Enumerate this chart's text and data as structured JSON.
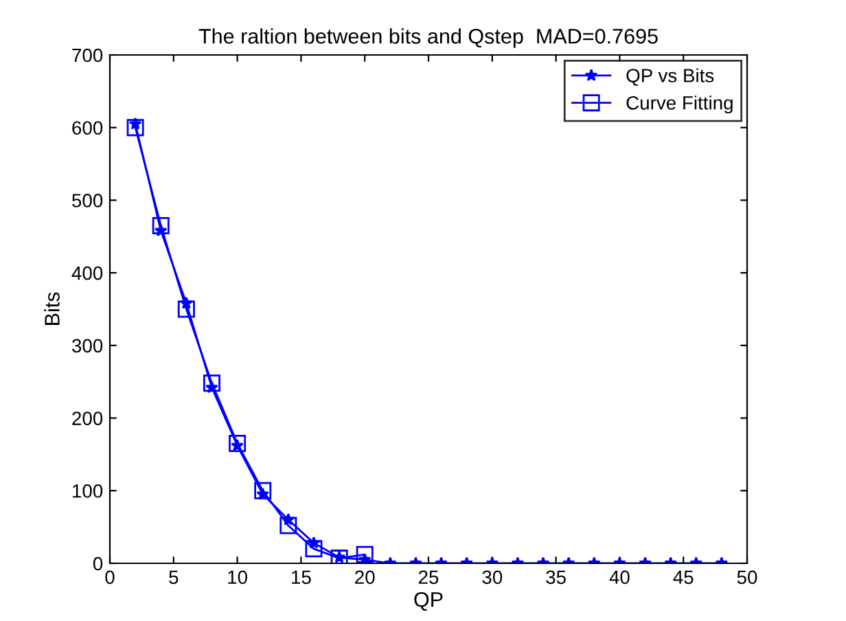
{
  "chart_data": {
    "type": "line",
    "title": "The raltion between bits and Qstep  MAD=0.7695",
    "xlabel": "QP",
    "ylabel": "Bits",
    "series": [
      {
        "name": "QP vs Bits",
        "color": "#0000ff",
        "marker": "star",
        "x": [
          2,
          4,
          6,
          8,
          10,
          12,
          14,
          16,
          18,
          20,
          22,
          24,
          26,
          28,
          30,
          32,
          34,
          36,
          38,
          40,
          42,
          44,
          46,
          48
        ],
        "values": [
          605,
          458,
          358,
          242,
          162,
          95,
          60,
          28,
          8,
          5,
          0,
          0,
          0,
          0,
          0,
          0,
          0,
          0,
          0,
          0,
          0,
          0,
          0,
          0
        ]
      },
      {
        "name": "Curve Fitting",
        "color": "#0000ff",
        "marker": "square",
        "x": [
          2,
          4,
          6,
          8,
          10,
          12,
          14,
          16,
          18,
          20
        ],
        "values": [
          600,
          465,
          350,
          248,
          165,
          100,
          52,
          20,
          7,
          12
        ]
      }
    ],
    "xlim": [
      0,
      50
    ],
    "xticks": [
      0,
      5,
      10,
      15,
      20,
      25,
      30,
      35,
      40,
      45,
      50
    ],
    "ylim": [
      0,
      700
    ],
    "yticks": [
      0,
      100,
      200,
      300,
      400,
      500,
      600,
      700
    ],
    "grid": false,
    "legend": "top right",
    "line_style": "solid"
  }
}
